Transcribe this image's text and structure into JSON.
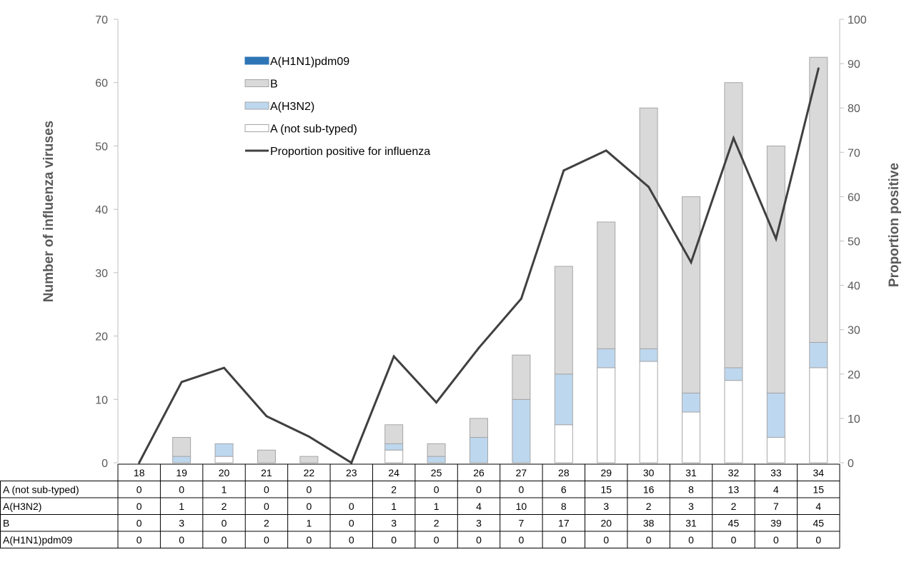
{
  "chart_data": {
    "type": "bar",
    "stacked": true,
    "categories": [
      "18",
      "19",
      "20",
      "21",
      "22",
      "23",
      "24",
      "25",
      "26",
      "27",
      "28",
      "29",
      "30",
      "31",
      "32",
      "33",
      "34"
    ],
    "series": [
      {
        "name": "A (not sub-typed)",
        "type": "bar",
        "axis": "left",
        "color": "#ffffff",
        "values": [
          0,
          0,
          1,
          0,
          0,
          null,
          2,
          0,
          0,
          0,
          6,
          15,
          16,
          8,
          13,
          4,
          15
        ],
        "table_values": [
          "0",
          "0",
          "1",
          "0",
          "0",
          "",
          "2",
          "0",
          "0",
          "0",
          "6",
          "15",
          "16",
          "8",
          "13",
          "4",
          "15"
        ]
      },
      {
        "name": "A(H3N2)",
        "type": "bar",
        "axis": "left",
        "color": "#bdd7ee",
        "values": [
          0,
          1,
          2,
          0,
          0,
          0,
          1,
          1,
          4,
          10,
          8,
          3,
          2,
          3,
          2,
          7,
          4
        ],
        "table_values": [
          "0",
          "1",
          "2",
          "0",
          "0",
          "0",
          "1",
          "1",
          "4",
          "10",
          "8",
          "3",
          "2",
          "3",
          "2",
          "7",
          "4"
        ]
      },
      {
        "name": "B",
        "type": "bar",
        "axis": "left",
        "color": "#d9d9d9",
        "values": [
          0,
          3,
          0,
          2,
          1,
          0,
          3,
          2,
          3,
          7,
          17,
          20,
          38,
          31,
          45,
          39,
          45
        ],
        "table_values": [
          "0",
          "3",
          "0",
          "2",
          "1",
          "0",
          "3",
          "2",
          "3",
          "7",
          "17",
          "20",
          "38",
          "31",
          "45",
          "39",
          "45"
        ]
      },
      {
        "name": "A(H1N1)pdm09",
        "type": "bar",
        "axis": "left",
        "color": "#2e75b6",
        "values": [
          0,
          0,
          0,
          0,
          0,
          0,
          0,
          0,
          0,
          0,
          0,
          0,
          0,
          0,
          0,
          0,
          0
        ],
        "table_values": [
          "0",
          "0",
          "0",
          "0",
          "0",
          "0",
          "0",
          "0",
          "0",
          "0",
          "0",
          "0",
          "0",
          "0",
          "0",
          "0",
          "0"
        ]
      },
      {
        "name": "Proportion positive for influenza",
        "type": "line",
        "axis": "right",
        "color": "#404040",
        "values": [
          0,
          18.2,
          21.4,
          10.5,
          5.9,
          0,
          24,
          13.6,
          25.9,
          37,
          65.9,
          70.4,
          62.2,
          45.2,
          73.2,
          50.5,
          88.9
        ]
      }
    ],
    "ylabel": "Number of influenza viruses",
    "y2label": "Proportion positive",
    "ylim": [
      0,
      70
    ],
    "yticks": [
      "0",
      "10",
      "20",
      "30",
      "40",
      "50",
      "60",
      "70"
    ],
    "y2lim": [
      0,
      100
    ],
    "y2ticks": [
      "0",
      "10",
      "20",
      "30",
      "40",
      "50",
      "60",
      "70",
      "80",
      "90",
      "100"
    ],
    "legend": [
      {
        "label": "A(H1N1)pdm09",
        "kind": "box",
        "color": "#2e75b6"
      },
      {
        "label": "B",
        "kind": "box",
        "color": "#d9d9d9"
      },
      {
        "label": "A(H3N2)",
        "kind": "box",
        "color": "#bdd7ee"
      },
      {
        "label": "A (not sub-typed)",
        "kind": "box",
        "color": "#ffffff"
      },
      {
        "label": "Proportion positive for influenza",
        "kind": "line",
        "color": "#404040"
      }
    ],
    "legend_position": "top-left",
    "table_row_order": [
      "A (not sub-typed)",
      "A(H3N2)",
      "B",
      "A(H1N1)pdm09"
    ],
    "grid": false
  }
}
